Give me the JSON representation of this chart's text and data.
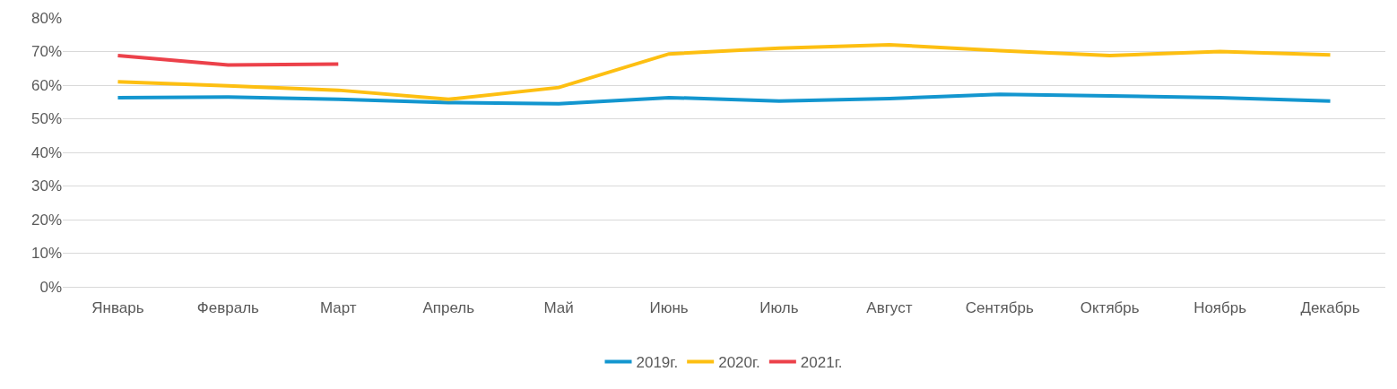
{
  "chart_data": {
    "type": "line",
    "categories": [
      "Январь",
      "Февраль",
      "Март",
      "Апрель",
      "Май",
      "Июнь",
      "Июль",
      "Август",
      "Сентябрь",
      "Октябрь",
      "Ноябрь",
      "Декабрь"
    ],
    "series": [
      {
        "name": "2019г.",
        "color": "#1396cf",
        "values": [
          56.3,
          56.5,
          55.8,
          54.8,
          54.5,
          56.3,
          55.3,
          56,
          57.3,
          56.8,
          56.3,
          55.3
        ]
      },
      {
        "name": "2020г.",
        "color": "#fdbf12",
        "values": [
          61,
          59.8,
          58.5,
          55.8,
          59.3,
          69.3,
          71,
          72,
          70.3,
          68.8,
          70,
          69
        ]
      },
      {
        "name": "2021г.",
        "color": "#ec414a",
        "values": [
          68.8,
          66,
          66.3,
          null,
          null,
          null,
          null,
          null,
          null,
          null,
          null,
          null
        ]
      }
    ],
    "ylim": [
      0,
      80
    ],
    "yticks": [
      {
        "value": 0,
        "label": "0%"
      },
      {
        "value": 10,
        "label": "10%"
      },
      {
        "value": 20,
        "label": "20%"
      },
      {
        "value": 30,
        "label": "30%"
      },
      {
        "value": 40,
        "label": "40%"
      },
      {
        "value": 50,
        "label": "50%"
      },
      {
        "value": 60,
        "label": "60%"
      },
      {
        "value": 70,
        "label": "70%"
      },
      {
        "value": 80,
        "label": "80%"
      }
    ],
    "grid": "y",
    "legend": "bottom",
    "marker": "none",
    "line_style": "solid"
  }
}
